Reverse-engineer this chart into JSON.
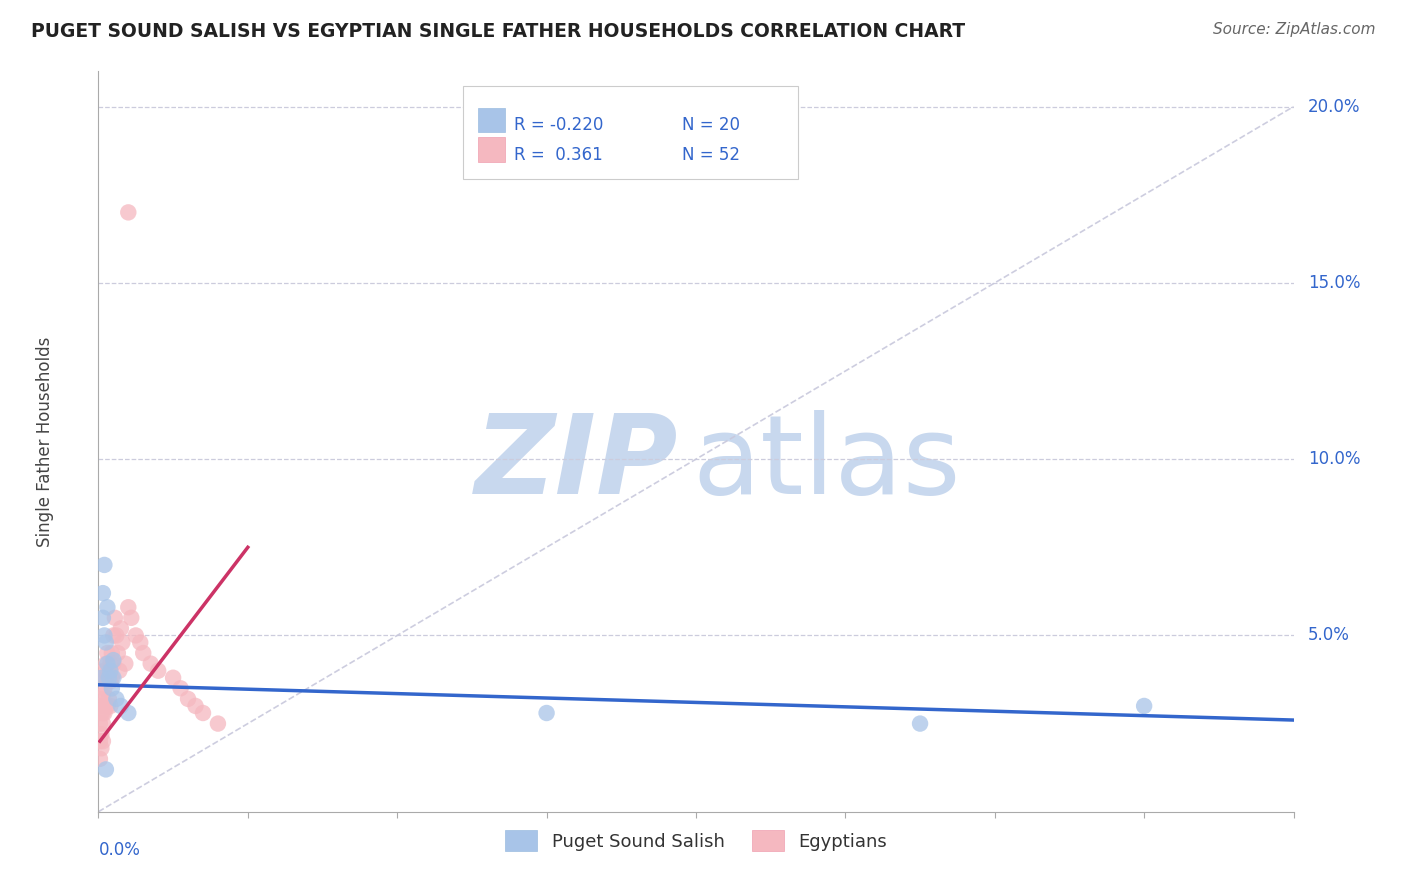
{
  "title": "PUGET SOUND SALISH VS EGYPTIAN SINGLE FATHER HOUSEHOLDS CORRELATION CHART",
  "source": "Source: ZipAtlas.com",
  "ylabel": "Single Father Households",
  "xlim": [
    0.0,
    0.8
  ],
  "ylim": [
    0.0,
    0.21
  ],
  "legend_blue_r": "-0.220",
  "legend_blue_n": "20",
  "legend_pink_r": "0.361",
  "legend_pink_n": "52",
  "blue_color": "#A8C4E8",
  "pink_color": "#F5B8C0",
  "blue_line_color": "#3366CC",
  "pink_line_color": "#CC3366",
  "diag_color": "#C8C8DC",
  "watermark_zip_color": "#C8D8EE",
  "watermark_atlas_color": "#C8D8EE",
  "background_color": "#FFFFFF",
  "grid_color": "#CCCCDD",
  "ytick_vals": [
    0.05,
    0.1,
    0.15,
    0.2
  ],
  "ytick_labels": [
    "5.0%",
    "10.0%",
    "15.0%",
    "20.0%"
  ],
  "blue_scatter_x": [
    0.002,
    0.003,
    0.003,
    0.004,
    0.005,
    0.006,
    0.006,
    0.007,
    0.008,
    0.009,
    0.01,
    0.01,
    0.012,
    0.015,
    0.02,
    0.3,
    0.55,
    0.7,
    0.004,
    0.005
  ],
  "blue_scatter_y": [
    0.038,
    0.062,
    0.055,
    0.05,
    0.048,
    0.058,
    0.042,
    0.038,
    0.04,
    0.035,
    0.038,
    0.043,
    0.032,
    0.03,
    0.028,
    0.028,
    0.025,
    0.03,
    0.07,
    0.012
  ],
  "pink_scatter_x": [
    0.001,
    0.001,
    0.001,
    0.001,
    0.002,
    0.002,
    0.002,
    0.002,
    0.003,
    0.003,
    0.003,
    0.003,
    0.003,
    0.004,
    0.004,
    0.004,
    0.005,
    0.005,
    0.005,
    0.006,
    0.006,
    0.006,
    0.007,
    0.007,
    0.008,
    0.008,
    0.008,
    0.009,
    0.009,
    0.01,
    0.01,
    0.011,
    0.012,
    0.013,
    0.014,
    0.015,
    0.016,
    0.018,
    0.02,
    0.022,
    0.025,
    0.028,
    0.03,
    0.035,
    0.04,
    0.05,
    0.055,
    0.06,
    0.065,
    0.07,
    0.08,
    0.02
  ],
  "pink_scatter_y": [
    0.03,
    0.025,
    0.02,
    0.015,
    0.032,
    0.028,
    0.022,
    0.018,
    0.038,
    0.033,
    0.028,
    0.025,
    0.02,
    0.04,
    0.035,
    0.028,
    0.042,
    0.038,
    0.03,
    0.045,
    0.038,
    0.03,
    0.04,
    0.032,
    0.042,
    0.037,
    0.03,
    0.045,
    0.038,
    0.05,
    0.042,
    0.055,
    0.05,
    0.045,
    0.04,
    0.052,
    0.048,
    0.042,
    0.058,
    0.055,
    0.05,
    0.048,
    0.045,
    0.042,
    0.04,
    0.038,
    0.035,
    0.032,
    0.03,
    0.028,
    0.025,
    0.17
  ],
  "blue_line_x": [
    0.0,
    0.8
  ],
  "blue_line_y": [
    0.036,
    0.026
  ],
  "pink_line_x": [
    0.001,
    0.1
  ],
  "pink_line_y": [
    0.02,
    0.075
  ],
  "diag_line_x": [
    0.0,
    0.8
  ],
  "diag_line_y": [
    0.0,
    0.2
  ]
}
